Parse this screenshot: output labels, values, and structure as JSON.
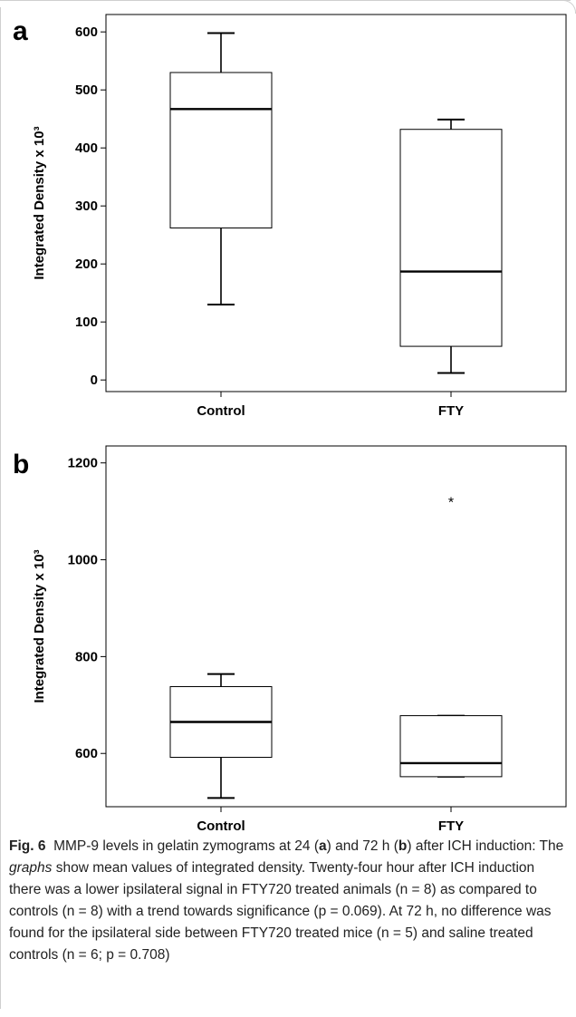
{
  "chart_data": [
    {
      "panel": "a",
      "type": "box",
      "ylabel": "Integrated Density x 10³",
      "ylim": [
        -20,
        630
      ],
      "yticks": [
        "0",
        "100",
        "200",
        "300",
        "400",
        "500",
        "600"
      ],
      "categories": [
        "Control",
        "FTY"
      ],
      "boxes": [
        {
          "name": "Control",
          "min": 130,
          "q1": 262,
          "median": 467,
          "q3": 530,
          "max": 598
        },
        {
          "name": "FTY",
          "min": 12,
          "q1": 58,
          "median": 187,
          "q3": 432,
          "max": 449
        }
      ]
    },
    {
      "panel": "b",
      "type": "box",
      "ylabel": "Integrated Density x 10³",
      "ylim": [
        490,
        1235
      ],
      "yticks": [
        "600",
        "800",
        "1000",
        "1200"
      ],
      "categories": [
        "Control",
        "FTY"
      ],
      "boxes": [
        {
          "name": "Control",
          "min": 508,
          "q1": 592,
          "median": 665,
          "q3": 738,
          "max": 764
        },
        {
          "name": "FTY",
          "min": 552,
          "q1": 552,
          "median": 580,
          "q3": 678,
          "max": 678,
          "outliers": [
            1120
          ]
        }
      ]
    }
  ],
  "caption": {
    "fig_label": "Fig. 6",
    "s1": "MMP-9 levels in gelatin zymograms at 24 (",
    "s2": ") and 72 h (",
    "s3": ") after ICH induction: The ",
    "s4": " show mean values of integrated density. Twenty-four hour after ICH induction there was a lower ipsilateral signal in FTY720 treated animals (n = 8) as compared to controls (n = 8) with a trend towards significance (p = 0.069). At 72 h, no difference was found for the ipsilateral side between FTY720 treated mice (n = 5) and saline treated controls (n = 6; p = 0.708)",
    "a": "a",
    "b": "b",
    "graphs": "graphs"
  }
}
